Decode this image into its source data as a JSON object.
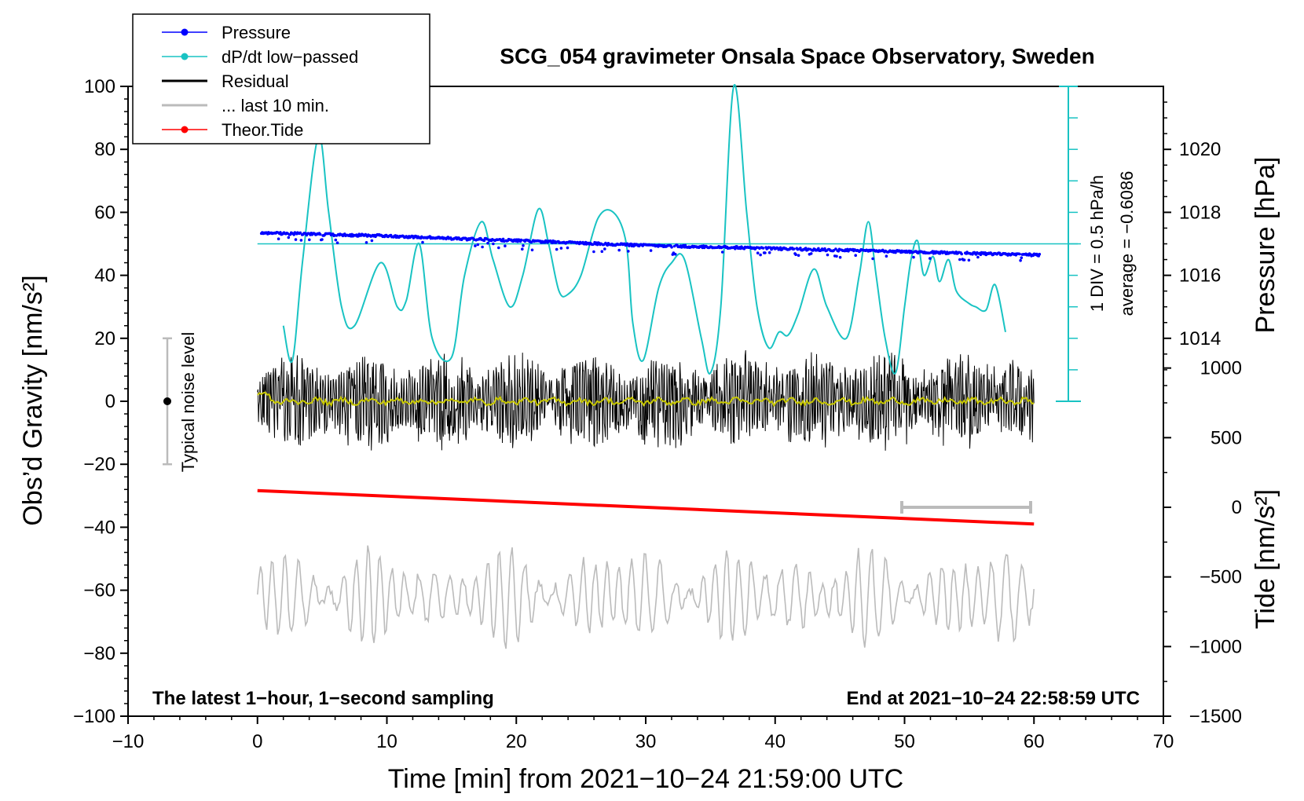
{
  "chart_data": {
    "type": "line",
    "title": "SCG_054 gravimeter Onsala Space Observatory, Sweden",
    "xlabel": "Time [min] from 2021−10−24 21:59:00 UTC",
    "ylabel_left": "Obs’d Gravity [nm/s²]",
    "ylabel_right_top": "Pressure [hPa]",
    "ylabel_right_bottom": "Tide [nm/s²]",
    "xlim": [
      -10,
      70
    ],
    "ylim_left": [
      -100,
      100
    ],
    "x_ticks": [
      -10,
      0,
      10,
      20,
      30,
      40,
      50,
      60,
      70
    ],
    "x_tick_labels": [
      "−10",
      "0",
      "10",
      "20",
      "30",
      "40",
      "50",
      "60",
      "70"
    ],
    "y_ticks_left": [
      -100,
      -80,
      -60,
      -40,
      -20,
      0,
      20,
      40,
      60,
      80,
      100
    ],
    "y_tick_labels_left": [
      "−100",
      "−80",
      "−60",
      "−40",
      "−20",
      "0",
      "20",
      "40",
      "60",
      "80",
      "100"
    ],
    "pressure_axis": {
      "range_hpa": [
        1012,
        1022
      ],
      "ticks": [
        1014,
        1016,
        1018,
        1020
      ],
      "tick_labels": [
        "1014",
        "1016",
        "1018",
        "1020"
      ]
    },
    "tide_axis": {
      "range": [
        -1500,
        1500
      ],
      "ticks": [
        -1500,
        -1000,
        -500,
        0,
        500,
        1000
      ],
      "tick_labels": [
        "−1500",
        "−1000",
        "−500",
        "0",
        "500",
        "1000"
      ]
    },
    "legend": [
      {
        "label": "Pressure",
        "color": "#0000ff",
        "style": "line-dot"
      },
      {
        "label": "dP/dt low−passed",
        "color": "#19c3c3",
        "style": "line-dot"
      },
      {
        "label": "Residual",
        "color": "#000000",
        "style": "line"
      },
      {
        "label": "... last 10 min.",
        "color": "#bbbbbb",
        "style": "line"
      },
      {
        "label": "Theor.Tide",
        "color": "#ff0000",
        "style": "line-dot"
      }
    ],
    "series": [
      {
        "name": "Pressure",
        "units": "hPa",
        "x": [
          0,
          10,
          20,
          30,
          40,
          50,
          60
        ],
        "values": [
          1017.35,
          1017.25,
          1017.1,
          1016.95,
          1016.85,
          1016.75,
          1016.65
        ]
      },
      {
        "name": "dP/dt low−passed",
        "units": "nm/s² (display)",
        "x": [
          2,
          2.7,
          3.5,
          4.7,
          5.5,
          6.5,
          7.5,
          9.5,
          10.8,
          11.5,
          12.5,
          13.5,
          15,
          16,
          17.3,
          18.2,
          19.5,
          20.5,
          21.7,
          22.5,
          23.3,
          24,
          25,
          26.3,
          27.5,
          28.5,
          29,
          29.8,
          31,
          32,
          33,
          34.3,
          35,
          35.8,
          36.8,
          37.8,
          38.6,
          39.5,
          40.3,
          41,
          41.8,
          43,
          44,
          45.5,
          46.5,
          47.2,
          47.8,
          48.5,
          49.3,
          50,
          50.5,
          51,
          51.5,
          52.2,
          52.7,
          53.4,
          54,
          55,
          55.5,
          56.3,
          57,
          57.8
        ],
        "values": [
          24,
          13,
          45,
          84,
          60,
          30,
          24,
          44,
          30,
          32,
          50,
          20,
          14,
          40,
          57,
          45,
          30,
          40,
          61,
          50,
          35,
          34,
          40,
          58,
          60,
          50,
          25,
          13,
          36,
          44,
          45,
          20,
          9,
          30,
          100,
          60,
          30,
          17,
          22,
          21,
          28,
          42,
          30,
          20,
          40,
          57,
          40,
          20,
          9,
          30,
          45,
          51,
          40,
          46,
          38,
          45,
          35,
          31,
          30,
          29,
          37,
          22
        ]
      },
      {
        "name": "Residual",
        "units": "nm/s²",
        "x_range": [
          0,
          60
        ],
        "baseline": 0,
        "amplitude_range": [
          -24,
          21
        ]
      },
      {
        "name": "... last 10 min.",
        "units": "nm/s²",
        "x_range": [
          0,
          60
        ],
        "baseline": -62,
        "amplitude_range": [
          -85,
          -45
        ]
      },
      {
        "name": "Theor.Tide",
        "units": "nm/s² (tide axis)",
        "x": [
          0,
          60
        ],
        "values": [
          120,
          -120
        ]
      }
    ]
  },
  "annotations": {
    "noise_label": "Typical noise level",
    "pressure_scale_label": "1 DIV = 0.5 hPa/h",
    "average_label": "average = −0.6086",
    "footer_left": "The latest 1−hour, 1−second sampling",
    "footer_right": "End at 2021−10−24 22:58:59 UTC"
  }
}
